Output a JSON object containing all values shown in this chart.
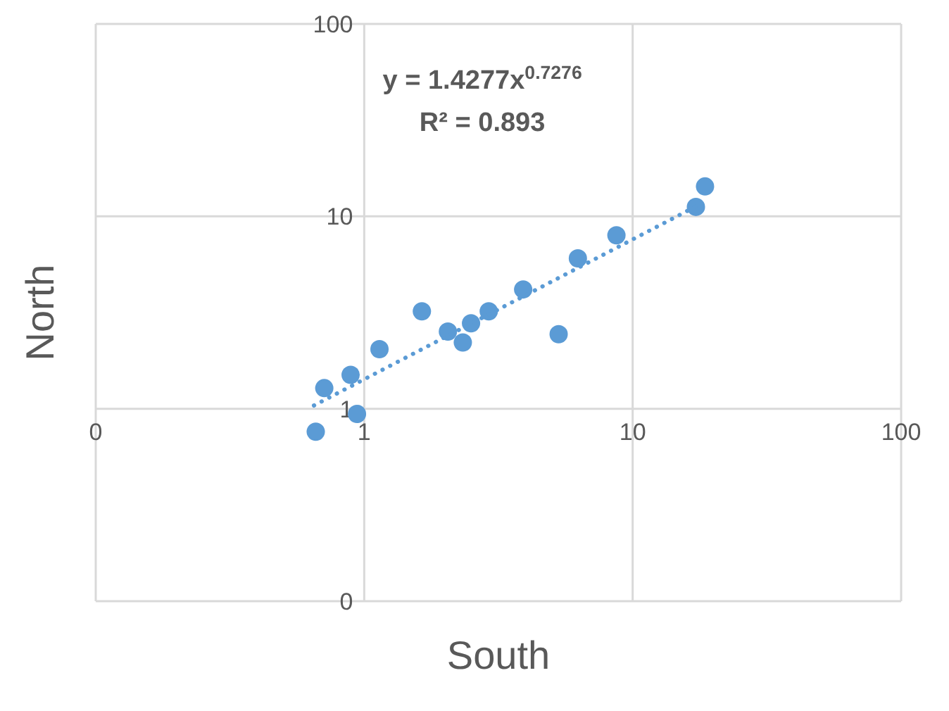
{
  "chart_data": {
    "type": "scatter",
    "xlabel": "South",
    "ylabel": "North",
    "log": "xy",
    "grid": true,
    "legend": false,
    "xlim": [
      0.1,
      100
    ],
    "ylim": [
      0.1,
      100
    ],
    "xticks": [
      {
        "value": 0.1,
        "label": "0"
      },
      1,
      10,
      100
    ],
    "yticks": [
      {
        "value": 0.1,
        "label": "0"
      },
      1,
      10,
      100
    ],
    "annotations": [
      "y = 1.4277x$^{0.7276}$",
      "R² = 0.893"
    ],
    "series": [
      {
        "marker": "circle",
        "color": "#5b9bd5",
        "x": [
          0.66,
          0.71,
          0.89,
          0.94,
          1.14,
          1.64,
          2.05,
          2.33,
          2.5,
          2.91,
          3.91,
          5.3,
          6.25,
          8.7,
          17.2,
          18.6
        ],
        "values": [
          0.76,
          1.28,
          1.5,
          0.94,
          2.04,
          3.21,
          2.52,
          2.21,
          2.78,
          3.21,
          4.17,
          2.44,
          6.05,
          7.97,
          11.2,
          14.3
        ]
      },
      {
        "type": "line",
        "marker": "none",
        "color": "#5b9bd5",
        "line_style": "dotted",
        "x": [
          0.65,
          17.5
        ],
        "values": [
          1.04,
          11.4
        ]
      }
    ]
  }
}
